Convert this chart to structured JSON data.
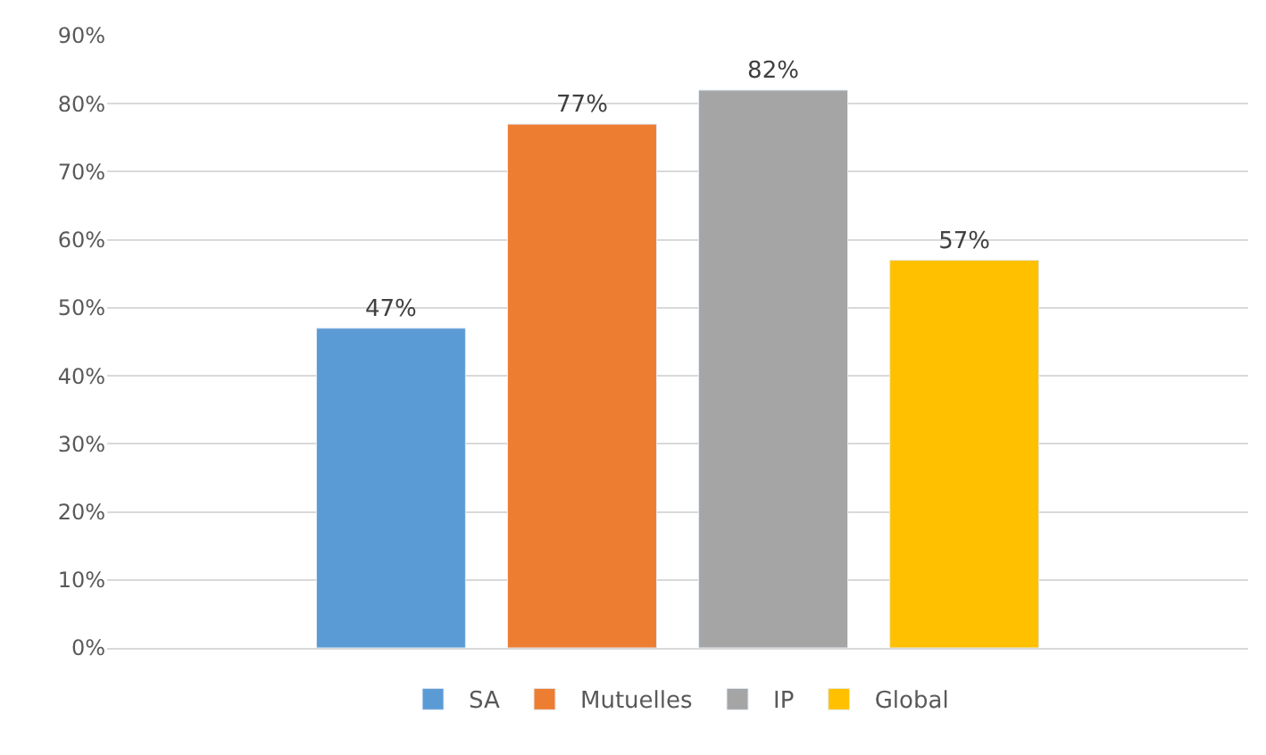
{
  "chart_data": {
    "type": "bar",
    "categories": [
      null
    ],
    "series": [
      {
        "name": "SA",
        "color": "#5b9bd5",
        "values": [
          47
        ],
        "value_labels": [
          "47%"
        ]
      },
      {
        "name": "Mutuelles",
        "color": "#ed7d31",
        "values": [
          77
        ],
        "value_labels": [
          "77%"
        ]
      },
      {
        "name": "IP",
        "color": "#a5a5a5",
        "values": [
          82
        ],
        "value_labels": [
          "82%"
        ]
      },
      {
        "name": "Global",
        "color": "#ffc000",
        "values": [
          57
        ],
        "value_labels": [
          "57%"
        ]
      }
    ],
    "ylim": [
      0,
      90
    ],
    "yticks": [
      {
        "value": 0,
        "label": "0%"
      },
      {
        "value": 10,
        "label": "10%"
      },
      {
        "value": 20,
        "label": "20%"
      },
      {
        "value": 30,
        "label": "30%"
      },
      {
        "value": 40,
        "label": "40%"
      },
      {
        "value": 50,
        "label": "50%"
      },
      {
        "value": 60,
        "label": "60%"
      },
      {
        "value": 70,
        "label": "70%"
      },
      {
        "value": 80,
        "label": "80%"
      },
      {
        "value": 90,
        "label": "90%"
      }
    ],
    "grid": "y",
    "legend": "bottom"
  }
}
